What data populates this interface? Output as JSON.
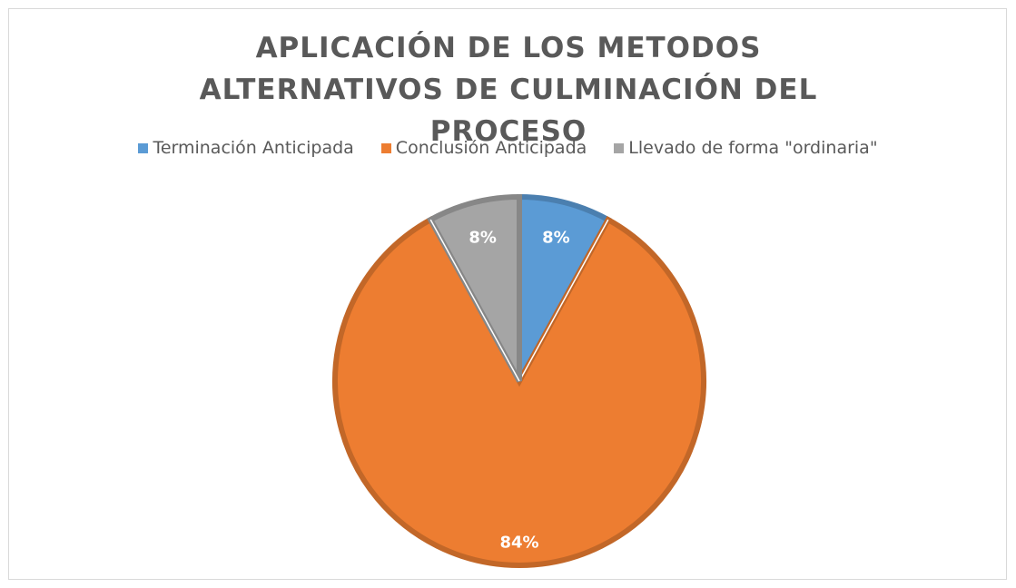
{
  "chart_data": {
    "type": "pie",
    "title": "APLICACIÓN DE LOS METODOS ALTERNATIVOS DE CULMINACIÓN DEL PROCESO",
    "categories": [
      "Terminación Anticipada",
      "Conclusión Anticipada",
      "Llevado de forma \"ordinaria\""
    ],
    "values": [
      8,
      84,
      8
    ],
    "value_labels": [
      "8%",
      "84%",
      "8%"
    ],
    "colors": [
      "#5b9bd5",
      "#ed7d31",
      "#a5a5a5"
    ],
    "legend": "top"
  }
}
